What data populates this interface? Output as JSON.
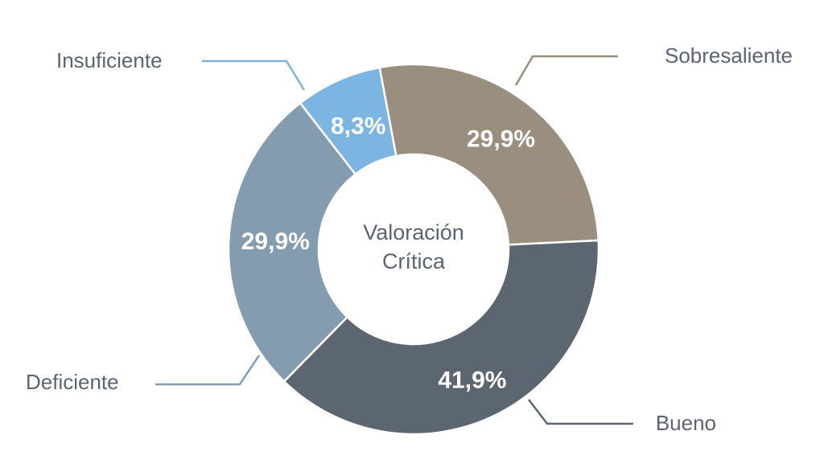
{
  "chart_data": {
    "type": "pie",
    "center_label": [
      "Valoración",
      "Crítica"
    ],
    "slices": [
      {
        "label": "Sobresaliente",
        "value": 29.9,
        "value_label": "29,9%",
        "color": "#9a8f7e"
      },
      {
        "label": "Bueno",
        "value": 41.9,
        "value_label": "41,9%",
        "color": "#5c6670"
      },
      {
        "label": "Deficiente",
        "value": 29.9,
        "value_label": "29,9%",
        "color": "#849cb0"
      },
      {
        "label": "Insuficiente",
        "value": 8.3,
        "value_label": "8,3%",
        "color": "#7cb4e2"
      }
    ]
  }
}
